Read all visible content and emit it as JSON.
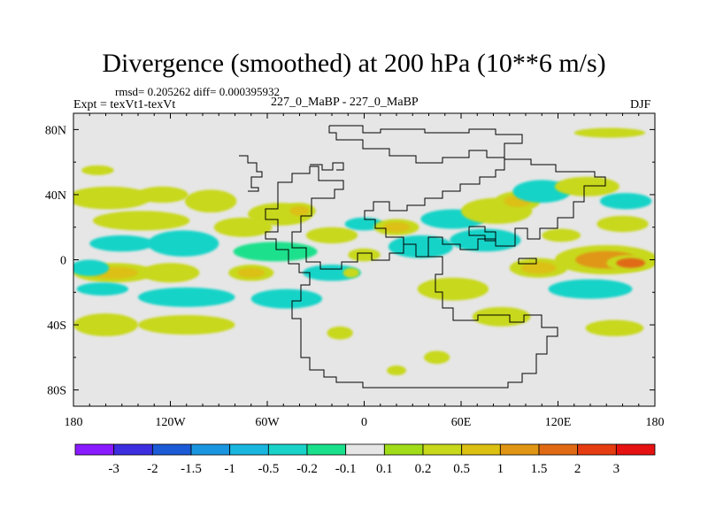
{
  "chart_data": {
    "type": "heatmap",
    "title": "Divergence (smoothed) at 200 hPa (10**6 m/s)",
    "stats": "rmsd= 0.205262 diff= 0.000395932",
    "expt": "Expt = texVt1-texVt",
    "cases": "227_0_MaBP - 227_0_MaBP",
    "season": "DJF",
    "xlim": [
      -180,
      180
    ],
    "ylim": [
      -90,
      90
    ],
    "x_ticks": [
      {
        "value": -180,
        "label": "180"
      },
      {
        "value": -120,
        "label": "120W"
      },
      {
        "value": -60,
        "label": "60W"
      },
      {
        "value": 0,
        "label": "0"
      },
      {
        "value": 60,
        "label": "60E"
      },
      {
        "value": 120,
        "label": "120E"
      },
      {
        "value": 180,
        "label": "180"
      }
    ],
    "y_ticks": [
      {
        "value": 80,
        "label": "80N"
      },
      {
        "value": 40,
        "label": "40N"
      },
      {
        "value": 0,
        "label": "0"
      },
      {
        "value": -40,
        "label": "40S"
      },
      {
        "value": -80,
        "label": "80S"
      }
    ],
    "colorbar": {
      "colors": [
        "#8a1aff",
        "#3d2ee0",
        "#1c5ad6",
        "#1a96e0",
        "#19b6e0",
        "#19d3c8",
        "#1ae08c",
        "#e6e6e6",
        "#a0dc18",
        "#c8d81a",
        "#dcc012",
        "#e09614",
        "#e06a14",
        "#e63c12",
        "#e61212"
      ],
      "labels": [
        "-3",
        "-2",
        "-1.5",
        "-1",
        "-0.5",
        "-0.2",
        "-0.1",
        "0.1",
        "0.2",
        "0.5",
        "1",
        "1.5",
        "2",
        "3"
      ]
    },
    "features": [
      {
        "lon": -158,
        "lat": 38,
        "rx": 26,
        "ry": 7,
        "v": 0.35
      },
      {
        "lon": -138,
        "lat": 24,
        "rx": 30,
        "ry": 6,
        "v": 0.2
      },
      {
        "lon": -125,
        "lat": 40,
        "rx": 16,
        "ry": 5,
        "v": 0.45
      },
      {
        "lon": -95,
        "lat": 36,
        "rx": 16,
        "ry": 7,
        "v": 0.25
      },
      {
        "lon": -150,
        "lat": 10,
        "rx": 20,
        "ry": 5,
        "v": -0.25
      },
      {
        "lon": -112,
        "lat": 10,
        "rx": 22,
        "ry": 8,
        "v": -0.35
      },
      {
        "lon": -75,
        "lat": 20,
        "rx": 18,
        "ry": 6,
        "v": 0.4
      },
      {
        "lon": -52,
        "lat": 28,
        "rx": 20,
        "ry": 7,
        "v": 0.3
      },
      {
        "lon": -40,
        "lat": 30,
        "rx": 10,
        "ry": 5,
        "v": 0.8
      },
      {
        "lon": -20,
        "lat": 15,
        "rx": 16,
        "ry": 5,
        "v": 0.2
      },
      {
        "lon": 0,
        "lat": 22,
        "rx": 12,
        "ry": 4,
        "v": -0.3
      },
      {
        "lon": -55,
        "lat": 5,
        "rx": 26,
        "ry": 6,
        "v": -0.2
      },
      {
        "lon": -155,
        "lat": -8,
        "rx": 25,
        "ry": 6,
        "v": 0.6
      },
      {
        "lon": -120,
        "lat": -8,
        "rx": 18,
        "ry": 6,
        "v": 0.45
      },
      {
        "lon": -70,
        "lat": -8,
        "rx": 14,
        "ry": 5,
        "v": 0.9
      },
      {
        "lon": -162,
        "lat": -18,
        "rx": 16,
        "ry": 4,
        "v": -0.4
      },
      {
        "lon": -110,
        "lat": -23,
        "rx": 30,
        "ry": 6,
        "v": -0.3
      },
      {
        "lon": -48,
        "lat": -24,
        "rx": 22,
        "ry": 6,
        "v": -0.35
      },
      {
        "lon": -160,
        "lat": -40,
        "rx": 20,
        "ry": 7,
        "v": 0.3
      },
      {
        "lon": -110,
        "lat": -40,
        "rx": 30,
        "ry": 6,
        "v": 0.25
      },
      {
        "lon": -20,
        "lat": -8,
        "rx": 18,
        "ry": 5,
        "v": -0.3
      },
      {
        "lon": -8,
        "lat": -8,
        "rx": 5,
        "ry": 3,
        "v": 0.2
      },
      {
        "lon": -15,
        "lat": -45,
        "rx": 8,
        "ry": 4,
        "v": 0.3
      },
      {
        "lon": 20,
        "lat": 20,
        "rx": 14,
        "ry": 5,
        "v": 0.6
      },
      {
        "lon": 35,
        "lat": 8,
        "rx": 20,
        "ry": 7,
        "v": -0.35
      },
      {
        "lon": 55,
        "lat": 25,
        "rx": 20,
        "ry": 6,
        "v": -0.3
      },
      {
        "lon": 82,
        "lat": 30,
        "rx": 22,
        "ry": 8,
        "v": 0.3
      },
      {
        "lon": 95,
        "lat": 36,
        "rx": 14,
        "ry": 6,
        "v": 0.55
      },
      {
        "lon": 110,
        "lat": 42,
        "rx": 18,
        "ry": 7,
        "v": -0.45
      },
      {
        "lon": 138,
        "lat": 45,
        "rx": 20,
        "ry": 6,
        "v": 0.3
      },
      {
        "lon": 162,
        "lat": 36,
        "rx": 16,
        "ry": 5,
        "v": -0.25
      },
      {
        "lon": 75,
        "lat": 12,
        "rx": 22,
        "ry": 7,
        "v": -0.3
      },
      {
        "lon": 160,
        "lat": 22,
        "rx": 16,
        "ry": 5,
        "v": 0.3
      },
      {
        "lon": 150,
        "lat": 0,
        "rx": 32,
        "ry": 9,
        "v": 1.1
      },
      {
        "lon": 165,
        "lat": -2,
        "rx": 15,
        "ry": 5,
        "v": 1.6
      },
      {
        "lon": 108,
        "lat": -5,
        "rx": 18,
        "ry": 6,
        "v": 0.6
      },
      {
        "lon": 140,
        "lat": -18,
        "rx": 26,
        "ry": 6,
        "v": -0.25
      },
      {
        "lon": 55,
        "lat": -18,
        "rx": 22,
        "ry": 7,
        "v": 0.3
      },
      {
        "lon": 85,
        "lat": -35,
        "rx": 18,
        "ry": 6,
        "v": 0.25
      },
      {
        "lon": 155,
        "lat": -42,
        "rx": 18,
        "ry": 5,
        "v": 0.2
      },
      {
        "lon": 45,
        "lat": -60,
        "rx": 8,
        "ry": 4,
        "v": 0.25
      },
      {
        "lon": 20,
        "lat": -68,
        "rx": 6,
        "ry": 3,
        "v": 0.25
      },
      {
        "lon": -170,
        "lat": -5,
        "rx": 12,
        "ry": 5,
        "v": -0.3
      },
      {
        "lon": 0,
        "lat": 3,
        "rx": 10,
        "ry": 4,
        "v": 0.25
      },
      {
        "lon": 122,
        "lat": 15,
        "rx": 12,
        "ry": 4,
        "v": 0.2
      },
      {
        "lon": 152,
        "lat": 78,
        "rx": 22,
        "ry": 3,
        "v": 0.25
      },
      {
        "lon": -165,
        "lat": 55,
        "rx": 10,
        "ry": 3,
        "v": 0.2
      }
    ]
  }
}
